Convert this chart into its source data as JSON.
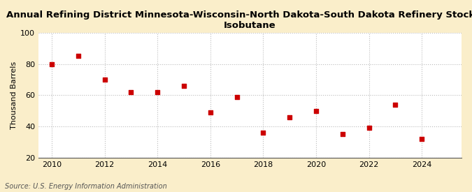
{
  "title_line1": "Annual Refining District Minnesota-Wisconsin-North Dakota-South Dakota Refinery Stocks of",
  "title_line2": "Isobutane",
  "ylabel": "Thousand Barrels",
  "source": "Source: U.S. Energy Information Administration",
  "fig_background_color": "#faeeca",
  "plot_background_color": "#ffffff",
  "x": [
    2010,
    2011,
    2012,
    2013,
    2014,
    2015,
    2016,
    2017,
    2018,
    2019,
    2020,
    2021,
    2022,
    2023,
    2024
  ],
  "y": [
    80,
    85,
    70,
    62,
    62,
    66,
    49,
    59,
    36,
    46,
    50,
    35,
    39,
    54,
    32
  ],
  "xlim": [
    2009.5,
    2025.5
  ],
  "ylim": [
    20,
    100
  ],
  "yticks": [
    20,
    40,
    60,
    80,
    100
  ],
  "xticks": [
    2010,
    2012,
    2014,
    2016,
    2018,
    2020,
    2022,
    2024
  ],
  "marker_color": "#cc0000",
  "marker": "s",
  "marker_size": 4,
  "grid_color": "#bbbbbb",
  "title_fontsize": 9.5,
  "label_fontsize": 8,
  "tick_fontsize": 8,
  "source_fontsize": 7
}
